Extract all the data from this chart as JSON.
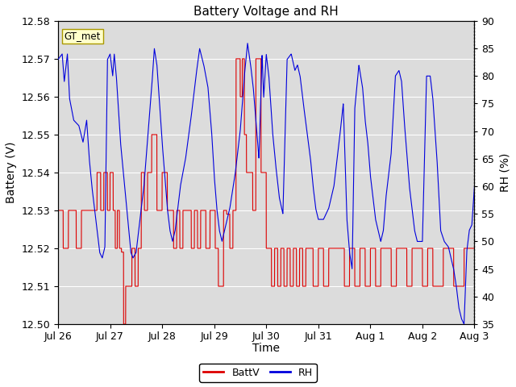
{
  "title": "Battery Voltage and RH",
  "xlabel": "Time",
  "ylabel_left": "Battery (V)",
  "ylabel_right": "RH (%)",
  "ylim_left": [
    12.5,
    12.58
  ],
  "ylim_right": [
    35,
    90
  ],
  "yticks_left": [
    12.5,
    12.51,
    12.52,
    12.53,
    12.54,
    12.55,
    12.56,
    12.57,
    12.58
  ],
  "yticks_right": [
    35,
    40,
    45,
    50,
    55,
    60,
    65,
    70,
    75,
    80,
    85,
    90
  ],
  "xtick_labels": [
    "Jul 26",
    "Jul 27",
    "Jul 28",
    "Jul 29",
    "Jul 30",
    "Jul 31",
    "Aug 1",
    "Aug 2",
    "Aug 3"
  ],
  "legend_label_red": "BattV",
  "legend_label_blue": "RH",
  "annotation_text": "GT_met",
  "bg_color": "#dcdcdc",
  "line_color_red": "#dd0000",
  "line_color_blue": "#0000dd",
  "title_fontsize": 11,
  "axis_fontsize": 10,
  "tick_fontsize": 9,
  "legend_fontsize": 9
}
